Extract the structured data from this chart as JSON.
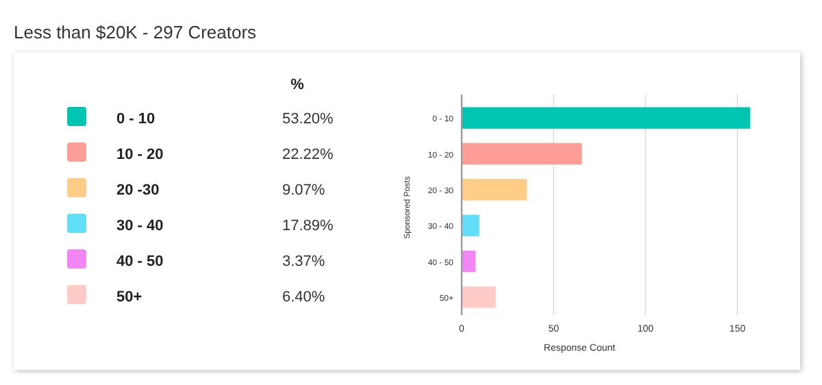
{
  "chart_data": [
    {
      "type": "other",
      "title": "Less than $20K - 297 Creators",
      "legend_title": "%",
      "categories": [
        "0 - 10",
        "10 - 20",
        "20 -30",
        "30 - 40",
        "40 - 50",
        "50+"
      ],
      "values": [
        53.2,
        22.22,
        9.07,
        17.89,
        3.37,
        6.4
      ],
      "value_labels": [
        "53.20%",
        "22.22%",
        "9.07%",
        "17.89%",
        "3.37%",
        "6.40%"
      ],
      "colors": [
        "#00c5b0",
        "#ff9e97",
        "#ffcd88",
        "#62def8",
        "#f286f5",
        "#ffcbc6"
      ]
    },
    {
      "type": "bar",
      "orientation": "horizontal",
      "categories": [
        "0 - 10",
        "10 - 20",
        "20 - 30",
        "30 - 40",
        "40 - 50",
        "50+"
      ],
      "values": [
        157,
        65.4,
        35.5,
        9.6,
        7.6,
        18.5
      ],
      "colors": [
        "#00c5b0",
        "#ff9e97",
        "#ffcd88",
        "#62def8",
        "#f286f5",
        "#ffcbc6"
      ],
      "xlim": [
        0,
        158
      ],
      "xticks": [
        0,
        50,
        100,
        150
      ],
      "grid": "x",
      "xlabel": "Response Count",
      "ylabel": "Sponsored Posts"
    }
  ]
}
